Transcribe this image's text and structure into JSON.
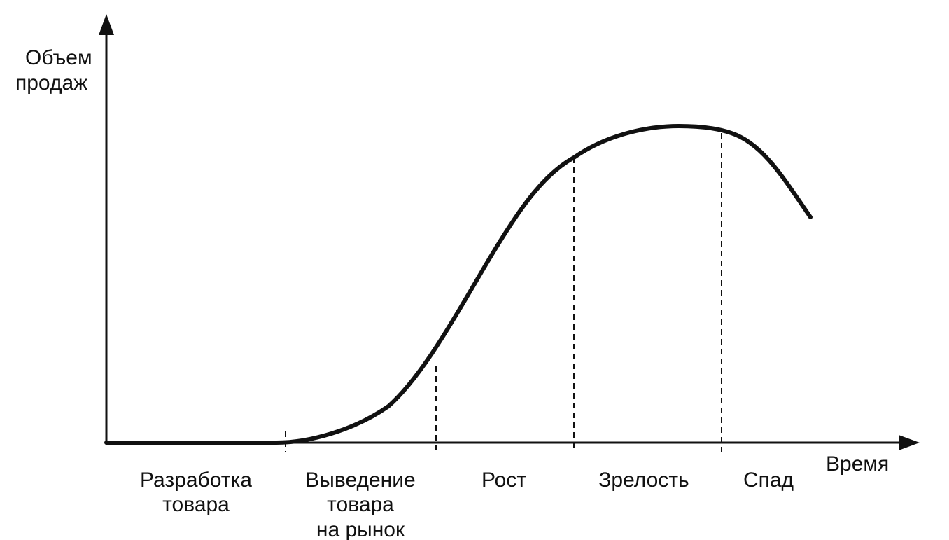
{
  "axes": {
    "y_label_lines": [
      "Объем",
      "продаж"
    ],
    "x_label": "Время"
  },
  "stages": [
    {
      "id": "development",
      "lines": [
        "Разработка",
        "товара"
      ]
    },
    {
      "id": "introduction",
      "lines": [
        "Выведение",
        "товара",
        "на рынок"
      ]
    },
    {
      "id": "growth",
      "lines": [
        "Рост"
      ]
    },
    {
      "id": "maturity",
      "lines": [
        "Зрелость"
      ]
    },
    {
      "id": "decline",
      "lines": [
        "Спад"
      ]
    }
  ],
  "colors": {
    "ink": "#111111",
    "background": "#ffffff"
  }
}
